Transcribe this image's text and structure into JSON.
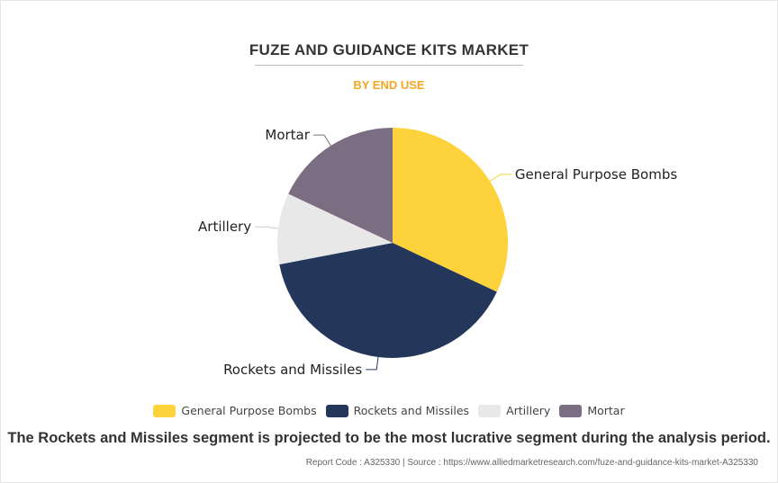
{
  "title": "FUZE AND GUIDANCE KITS MARKET",
  "subtitle": "BY END USE",
  "chart_data": {
    "type": "pie",
    "title": "FUZE AND GUIDANCE KITS MARKET",
    "subtitle": "BY END USE",
    "categories": [
      "General Purpose Bombs",
      "Rockets and Missiles",
      "Artillery",
      "Mortar"
    ],
    "values": [
      32,
      40,
      10,
      18
    ],
    "colors": [
      "#FDD23A",
      "#24375A",
      "#E8E8E8",
      "#7C6E82"
    ],
    "legend": "bottom"
  },
  "note": "The Rockets and Missiles segment is projected to be the most lucrative segment during the analysis period.",
  "footer": "Report Code : A325330  |  Source : https://www.alliedmarketresearch.com/fuze-and-guidance-kits-market-A325330"
}
